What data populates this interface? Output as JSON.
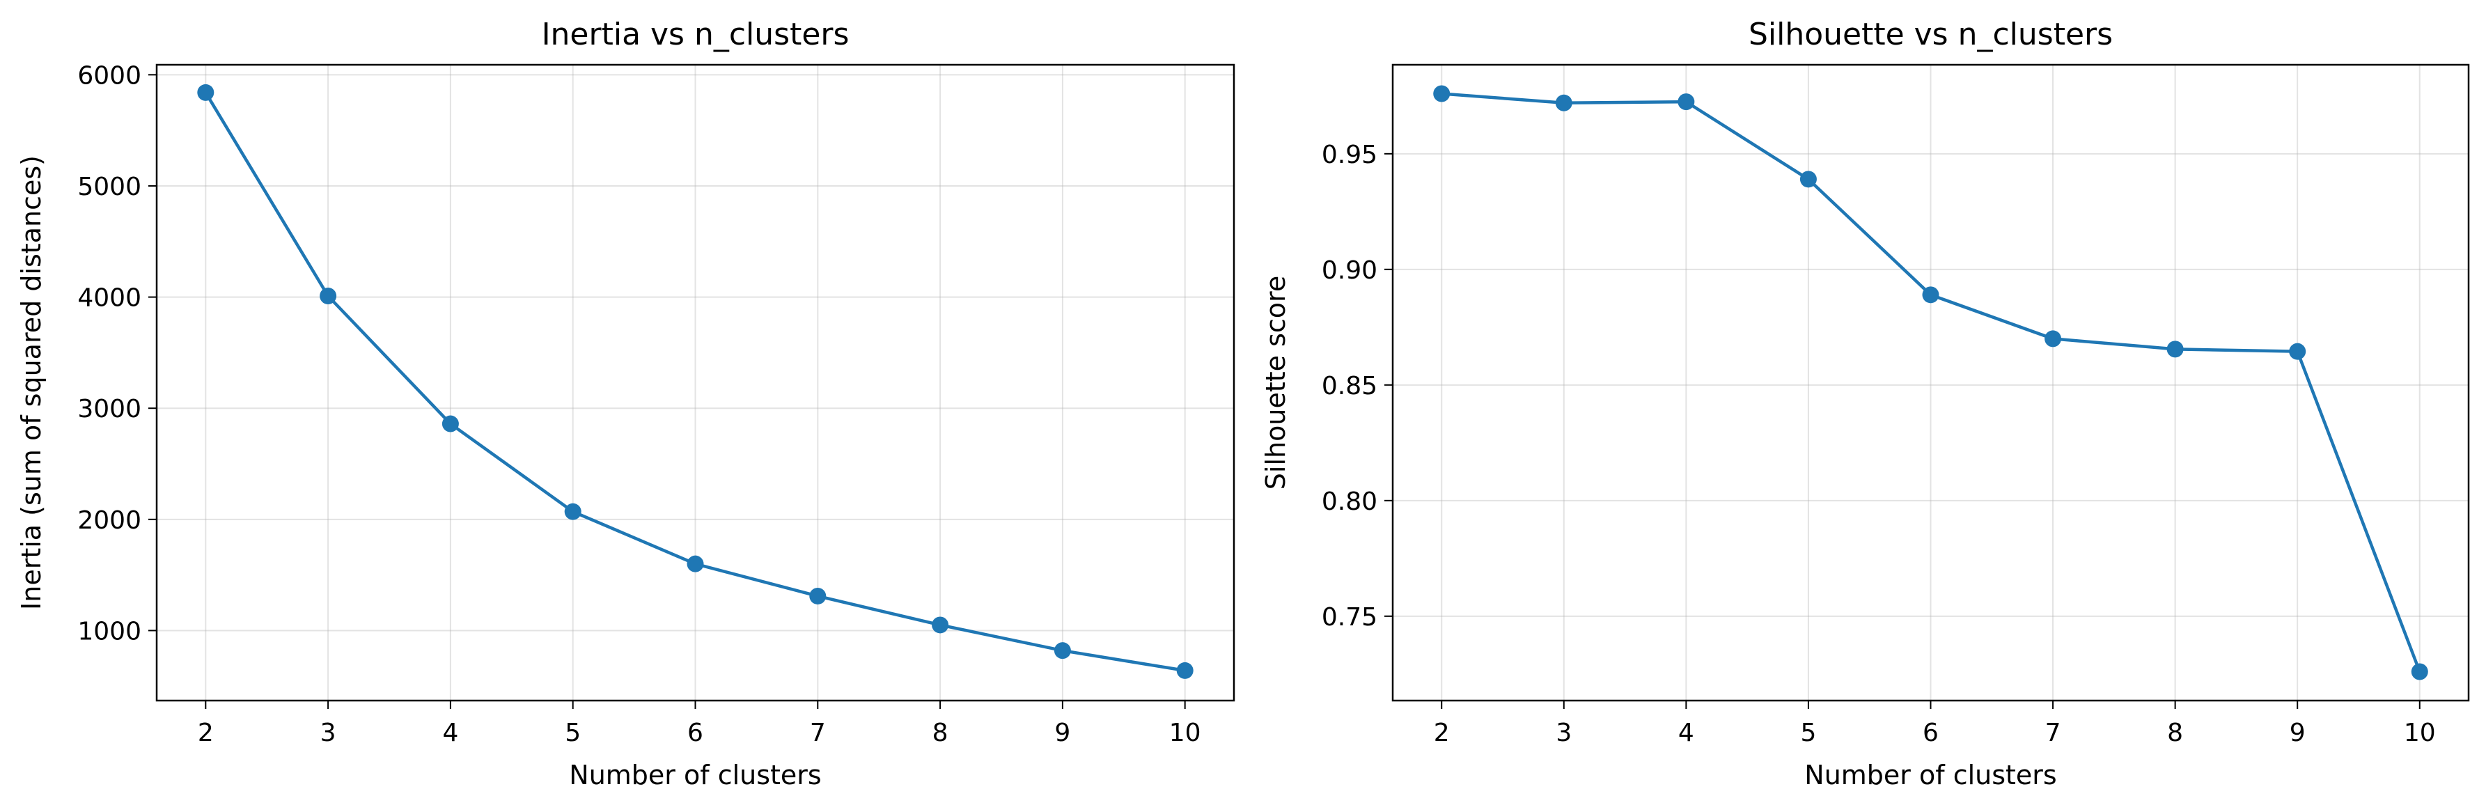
{
  "chart_data": [
    {
      "type": "line",
      "title": "Inertia vs n_clusters",
      "xlabel": "Number of clusters",
      "ylabel": "Inertia (sum of squared distances)",
      "x": [
        2,
        3,
        4,
        5,
        6,
        7,
        8,
        9,
        10
      ],
      "xticks": [
        2,
        3,
        4,
        5,
        6,
        7,
        8,
        9,
        10
      ],
      "xlim": [
        1.6,
        10.4
      ],
      "yticks": [
        1000,
        2000,
        3000,
        4000,
        5000,
        6000
      ],
      "ylim": [
        370,
        6090
      ],
      "ytick_decimals": 0,
      "grid": true,
      "color": "#1f77b4",
      "series": [
        {
          "values": [
            5840,
            4010,
            2860,
            2070,
            1600,
            1310,
            1050,
            820,
            640
          ]
        }
      ]
    },
    {
      "type": "line",
      "title": "Silhouette vs n_clusters",
      "xlabel": "Number of clusters",
      "ylabel": "Silhouette score",
      "x": [
        2,
        3,
        4,
        5,
        6,
        7,
        8,
        9,
        10
      ],
      "xticks": [
        2,
        3,
        4,
        5,
        6,
        7,
        8,
        9,
        10
      ],
      "xlim": [
        1.6,
        10.4
      ],
      "yticks": [
        0.75,
        0.8,
        0.85,
        0.9,
        0.95
      ],
      "ylim": [
        0.7135,
        0.9885
      ],
      "ytick_decimals": 2,
      "grid": true,
      "color": "#1f77b4",
      "series": [
        {
          "values": [
            0.976,
            0.972,
            0.9725,
            0.939,
            0.889,
            0.87,
            0.8655,
            0.8645,
            0.726
          ]
        }
      ]
    }
  ]
}
